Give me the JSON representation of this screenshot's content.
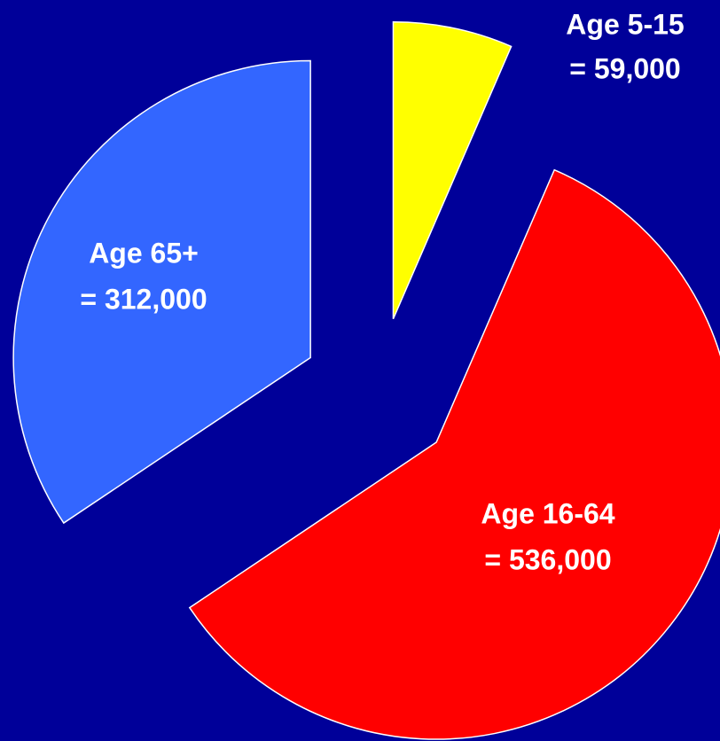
{
  "chart_data": {
    "type": "pie",
    "categories": [
      "Age 5-15",
      "Age 16-64",
      "Age 65+"
    ],
    "values": [
      59000,
      536000,
      312000
    ],
    "value_labels": [
      "= 59,000",
      "= 536,000",
      "= 312,000"
    ],
    "colors": [
      "#ffff00",
      "#ff0000",
      "#3366ff"
    ]
  }
}
